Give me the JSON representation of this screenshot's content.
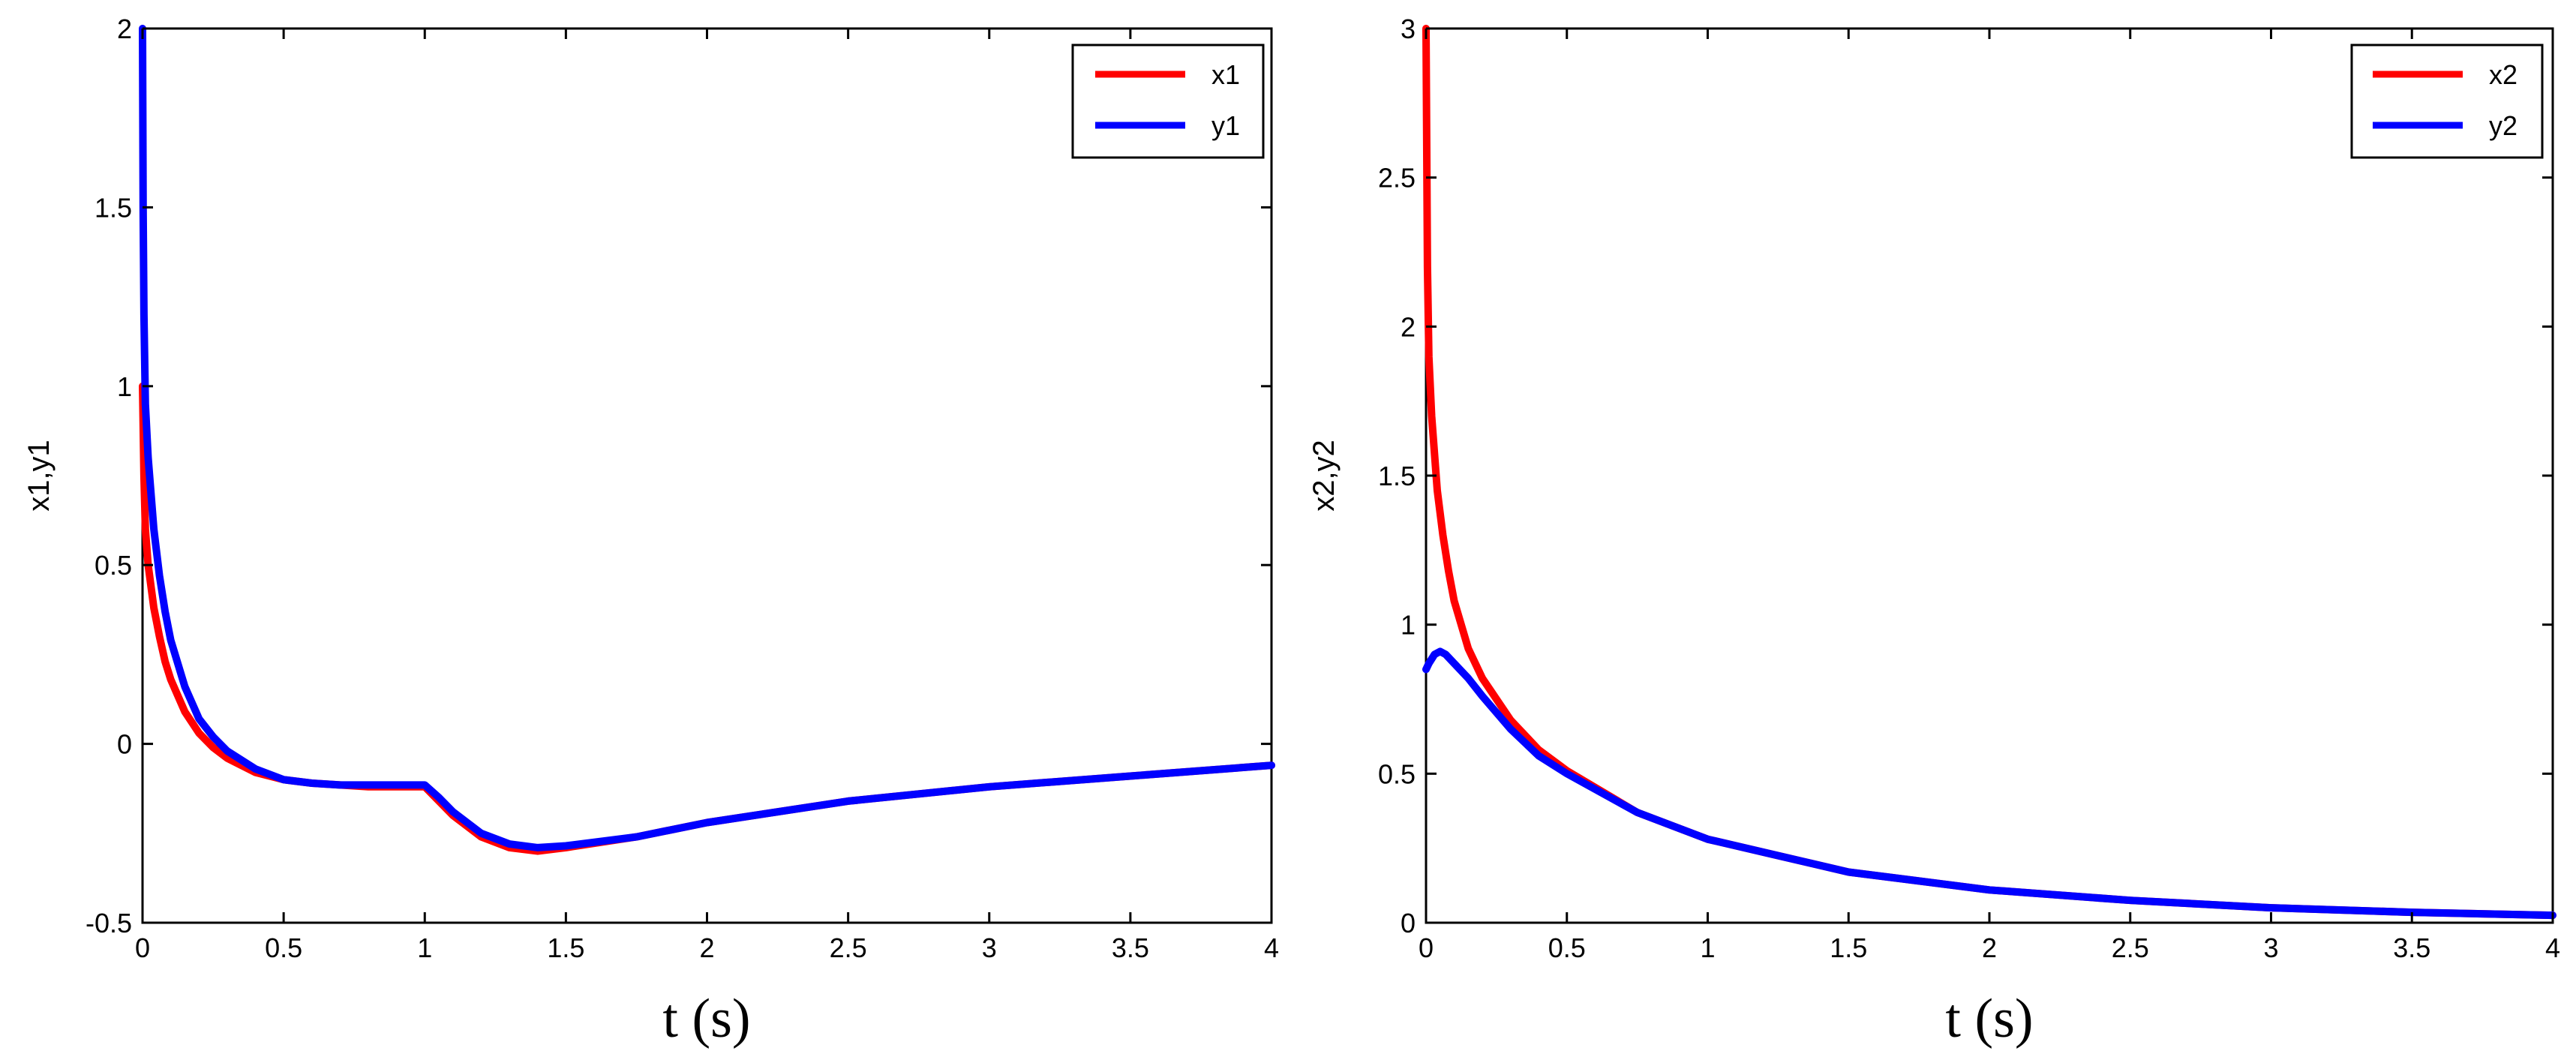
{
  "chart_data": [
    {
      "type": "line",
      "xlabel": "t (s)",
      "ylabel": "x1,y1",
      "xlim": [
        0,
        4
      ],
      "ylim": [
        -0.5,
        2
      ],
      "xticks": [
        "0",
        "0.5",
        "1",
        "1.5",
        "2",
        "2.5",
        "3",
        "3.5",
        "4"
      ],
      "yticks": [
        "-0.5",
        "0",
        "0.5",
        "1",
        "1.5",
        "2"
      ],
      "grid": false,
      "legend_position": "top-right",
      "series": [
        {
          "name": "x1",
          "color": "#ff0000",
          "x": [
            0,
            0.005,
            0.01,
            0.02,
            0.04,
            0.06,
            0.08,
            0.1,
            0.15,
            0.2,
            0.25,
            0.3,
            0.4,
            0.5,
            0.6,
            0.7,
            0.8,
            0.9,
            1.0,
            1.05,
            1.1,
            1.2,
            1.3,
            1.4,
            1.5,
            1.75,
            2.0,
            2.5,
            3.0,
            3.5,
            4.0
          ],
          "y": [
            1.0,
            0.75,
            0.6,
            0.5,
            0.38,
            0.3,
            0.23,
            0.18,
            0.09,
            0.03,
            -0.01,
            -0.04,
            -0.08,
            -0.1,
            -0.11,
            -0.115,
            -0.12,
            -0.12,
            -0.12,
            -0.16,
            -0.2,
            -0.26,
            -0.29,
            -0.3,
            -0.29,
            -0.26,
            -0.22,
            -0.16,
            -0.12,
            -0.09,
            -0.06
          ]
        },
        {
          "name": "y1",
          "color": "#0000ff",
          "x": [
            0,
            0.002,
            0.005,
            0.01,
            0.02,
            0.04,
            0.06,
            0.08,
            0.1,
            0.15,
            0.2,
            0.25,
            0.3,
            0.4,
            0.5,
            0.6,
            0.7,
            0.8,
            0.9,
            1.0,
            1.05,
            1.1,
            1.2,
            1.3,
            1.4,
            1.5,
            1.75,
            2.0,
            2.5,
            3.0,
            3.5,
            4.0
          ],
          "y": [
            2.0,
            1.5,
            1.2,
            0.95,
            0.8,
            0.6,
            0.47,
            0.37,
            0.29,
            0.16,
            0.07,
            0.02,
            -0.02,
            -0.07,
            -0.1,
            -0.11,
            -0.115,
            -0.115,
            -0.115,
            -0.115,
            -0.15,
            -0.19,
            -0.25,
            -0.28,
            -0.29,
            -0.285,
            -0.26,
            -0.22,
            -0.16,
            -0.12,
            -0.09,
            -0.06
          ]
        }
      ]
    },
    {
      "type": "line",
      "xlabel": "t (s)",
      "ylabel": "x2,y2",
      "xlim": [
        0,
        4
      ],
      "ylim": [
        0,
        3
      ],
      "xticks": [
        "0",
        "0.5",
        "1",
        "1.5",
        "2",
        "2.5",
        "3",
        "3.5",
        "4"
      ],
      "yticks": [
        "0",
        "0.5",
        "1",
        "1.5",
        "2",
        "2.5",
        "3"
      ],
      "grid": false,
      "legend_position": "top-right",
      "series": [
        {
          "name": "x2",
          "color": "#ff0000",
          "x": [
            0,
            0.005,
            0.01,
            0.02,
            0.04,
            0.06,
            0.08,
            0.1,
            0.15,
            0.2,
            0.3,
            0.4,
            0.5,
            0.75,
            1.0,
            1.5,
            2.0,
            2.5,
            3.0,
            3.5,
            4.0
          ],
          "y": [
            3.0,
            2.2,
            1.9,
            1.7,
            1.45,
            1.3,
            1.18,
            1.08,
            0.92,
            0.82,
            0.68,
            0.58,
            0.51,
            0.37,
            0.28,
            0.17,
            0.11,
            0.075,
            0.05,
            0.035,
            0.025
          ]
        },
        {
          "name": "y2",
          "color": "#0000ff",
          "x": [
            0,
            0.01,
            0.03,
            0.05,
            0.07,
            0.1,
            0.15,
            0.2,
            0.3,
            0.4,
            0.5,
            0.75,
            1.0,
            1.5,
            2.0,
            2.5,
            3.0,
            3.5,
            4.0
          ],
          "y": [
            0.85,
            0.87,
            0.9,
            0.91,
            0.9,
            0.87,
            0.82,
            0.76,
            0.65,
            0.56,
            0.5,
            0.37,
            0.28,
            0.17,
            0.11,
            0.075,
            0.05,
            0.035,
            0.025
          ]
        }
      ]
    }
  ]
}
